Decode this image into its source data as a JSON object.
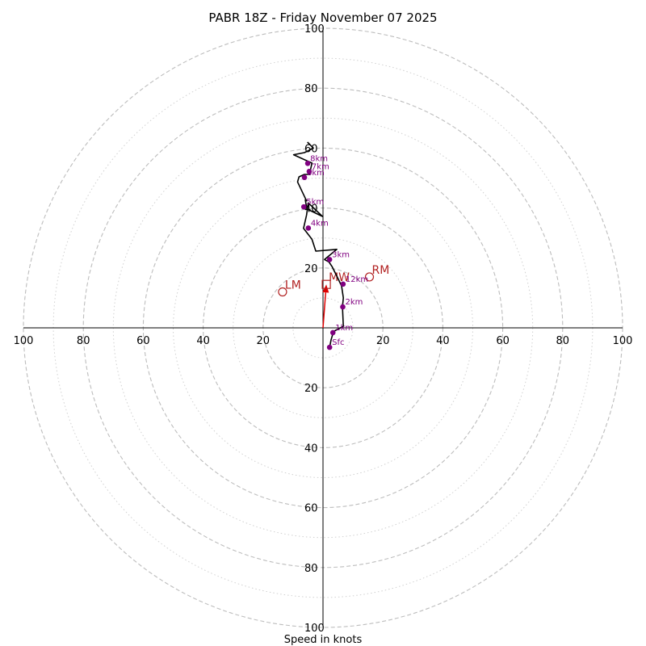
{
  "chart_data": {
    "type": "scatter",
    "title": "PABR 18Z - Friday November 07 2025",
    "xlabel": "Speed in knots",
    "ylabel": "",
    "units": "knots",
    "xlim": [
      -100,
      100
    ],
    "ylim": [
      -100,
      100
    ],
    "rings_major": [
      20,
      40,
      60,
      80,
      100
    ],
    "rings_minor": [
      10,
      30,
      50,
      70,
      90
    ],
    "x_ticks": [
      {
        "v": -100,
        "label": "100"
      },
      {
        "v": -80,
        "label": "80"
      },
      {
        "v": -60,
        "label": "60"
      },
      {
        "v": -40,
        "label": "40"
      },
      {
        "v": -20,
        "label": "20"
      },
      {
        "v": 20,
        "label": "20"
      },
      {
        "v": 40,
        "label": "40"
      },
      {
        "v": 60,
        "label": "60"
      },
      {
        "v": 80,
        "label": "80"
      },
      {
        "v": 100,
        "label": "100"
      }
    ],
    "y_ticks": [
      {
        "v": 100,
        "label": "100"
      },
      {
        "v": 80,
        "label": "80"
      },
      {
        "v": 60,
        "label": "60"
      },
      {
        "v": 40,
        "label": "40"
      },
      {
        "v": 20,
        "label": "20"
      },
      {
        "v": -20,
        "label": "20"
      },
      {
        "v": -40,
        "label": "40"
      },
      {
        "v": -60,
        "label": "60"
      },
      {
        "v": -80,
        "label": "80"
      },
      {
        "v": -100,
        "label": "100"
      }
    ],
    "hodograph": {
      "u": [
        2.2,
        2.7,
        3.2,
        3.5,
        6.8,
        6.5,
        6.8,
        6.2,
        4.5,
        3.0,
        2.0,
        0.5,
        4.6,
        -2.4,
        -3.7,
        -6.5,
        -5.5,
        -4.9,
        -0.2,
        -5.4,
        -5.9,
        -5.5,
        -8.5,
        -8.0,
        -6.2,
        -4.5,
        -3.7,
        -9.8,
        -6.2,
        -3.2,
        -5.2
      ],
      "v": [
        -6.5,
        -4.0,
        -2.3,
        -1.2,
        0.5,
        7.0,
        10.0,
        14.0,
        17.5,
        20.5,
        22.0,
        22.8,
        26.2,
        25.6,
        29.6,
        33.2,
        37.6,
        41.7,
        37.2,
        39.7,
        42.7,
        42.4,
        48.7,
        50.4,
        51.2,
        51.2,
        55.0,
        57.8,
        58.5,
        60.0,
        62.0
      ]
    },
    "height_markers": [
      {
        "label": "Sfc",
        "u": 2.2,
        "v": -6.5
      },
      {
        "label": "1km",
        "u": 3.3,
        "v": -1.6
      },
      {
        "label": "2km",
        "u": 6.6,
        "v": 7.0
      },
      {
        "label": "12km",
        "u": 6.7,
        "v": 14.6
      },
      {
        "label": "3km",
        "u": 2.2,
        "v": 22.8
      },
      {
        "label": "4km",
        "u": -4.9,
        "v": 33.3
      },
      {
        "label": "5km",
        "u": -6.4,
        "v": 40.4
      },
      {
        "label": "6km",
        "u": -6.2,
        "v": 50.2
      },
      {
        "label": "7km",
        "u": -4.6,
        "v": 52.2
      },
      {
        "label": "8km",
        "u": -5.1,
        "v": 54.9
      }
    ],
    "storm_motion": [
      {
        "label": "RM",
        "u": 15.5,
        "v": 17.0
      },
      {
        "label": "LM",
        "u": -13.5,
        "v": 12.0
      },
      {
        "label": "MW",
        "u": 1.1,
        "v": 14.5
      }
    ],
    "shear_vector": {
      "u_from": 0.0,
      "v_from": 0.0,
      "u_to": 1.1,
      "v_to": 14.5
    }
  }
}
